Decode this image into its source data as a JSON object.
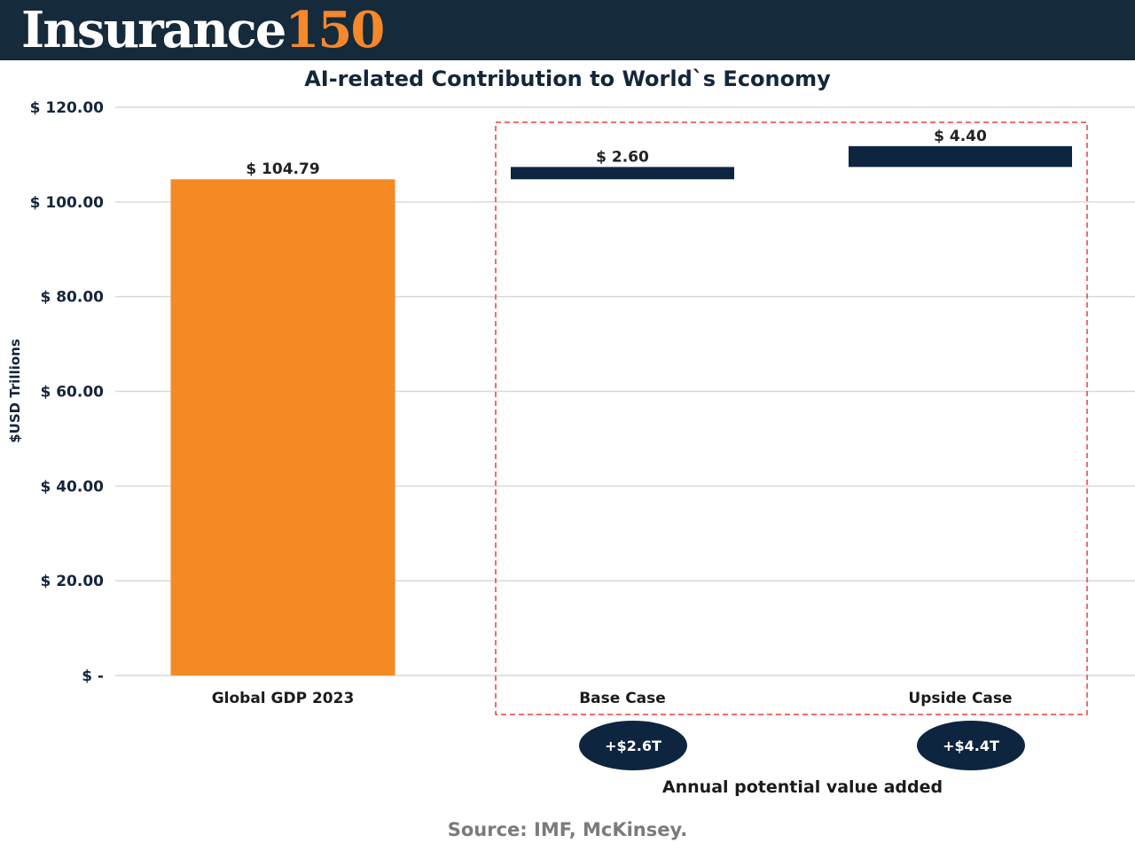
{
  "header": {
    "brand_word": "Insurance",
    "brand_number": "150"
  },
  "colors": {
    "header_bg": "#152a3a",
    "brand_accent": "#f5882a",
    "gdp_bar": "#f58a25",
    "case_bar": "#0e2540",
    "dashed_box": "#e8413f",
    "grid": "#d9d9d9",
    "pill": "#0e2540"
  },
  "chart_data": {
    "type": "bar",
    "title": "AI-related Contribution to World`s Economy",
    "ylabel": "$USD Trillions",
    "xlabel": "",
    "ylim": [
      0,
      120
    ],
    "y_ticks": [
      0,
      20,
      40,
      60,
      80,
      100,
      120
    ],
    "y_tick_labels": [
      "$ -",
      "$ 20.00",
      "$ 40.00",
      "$ 60.00",
      "$ 80.00",
      "$ 100.00",
      "$ 120.00"
    ],
    "grid": true,
    "categories": [
      "Global GDP 2023",
      "Base Case",
      "Upside Case"
    ],
    "bars": [
      {
        "category": "Global GDP 2023",
        "base": 0,
        "value": 104.79,
        "label": "$ 104.79",
        "color": "#f58a25"
      },
      {
        "category": "Base Case",
        "base": 104.79,
        "value": 2.6,
        "label": "$ 2.60",
        "color": "#0e2540"
      },
      {
        "category": "Upside Case",
        "base": 107.39,
        "value": 4.4,
        "label": "$ 4.40",
        "color": "#0e2540"
      }
    ],
    "highlight_box": {
      "categories": [
        "Base Case",
        "Upside Case"
      ],
      "style": "dashed red"
    },
    "pills": [
      {
        "category": "Base Case",
        "text": "+$2.6T"
      },
      {
        "category": "Upside Case",
        "text": "+$4.4T"
      }
    ],
    "annotation": "Annual potential value added"
  },
  "footer": {
    "source": "Source: IMF, McKinsey."
  }
}
